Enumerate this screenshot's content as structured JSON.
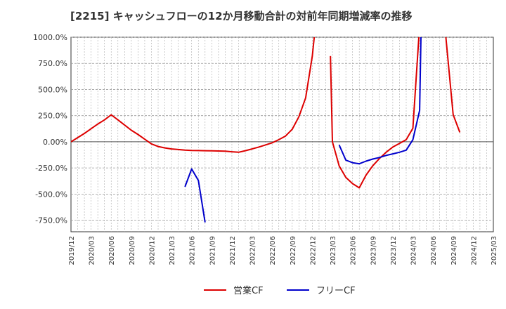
{
  "chart_data": {
    "type": "line",
    "title": "[2215]  キャッシュフローの12か月移動合計の対前年同期増減率の推移",
    "xlabel": "",
    "ylabel": "",
    "ylim": [
      -860,
      1000
    ],
    "y_ticks": [
      "1000.0%",
      "750.0%",
      "500.0%",
      "250.0%",
      "0.00%",
      "-250.0%",
      "-500.0%",
      "-750.0%"
    ],
    "y_tick_values": [
      1000,
      750,
      500,
      250,
      0,
      -250,
      -500,
      -750
    ],
    "x_ticks": [
      "2019/12",
      "2020/03",
      "2020/06",
      "2020/09",
      "2020/12",
      "2021/03",
      "2021/06",
      "2021/09",
      "2021/12",
      "2022/03",
      "2022/06",
      "2022/09",
      "2022/12",
      "2023/03",
      "2023/06",
      "2023/09",
      "2023/12",
      "2024/03",
      "2024/06",
      "2024/09",
      "2024/12",
      "2025/03"
    ],
    "x_start": "2019/12",
    "grid": true,
    "legend_position": "bottom",
    "series": [
      {
        "name": "営業CF",
        "color": "#dd0000",
        "points": [
          [
            0,
            0
          ],
          [
            1,
            40
          ],
          [
            2,
            80
          ],
          [
            3,
            125
          ],
          [
            4,
            170
          ],
          [
            5,
            210
          ],
          [
            6,
            258
          ],
          [
            7,
            210
          ],
          [
            8,
            160
          ],
          [
            9,
            110
          ],
          [
            10,
            70
          ],
          [
            11,
            25
          ],
          [
            12,
            -20
          ],
          [
            13,
            -45
          ],
          [
            14,
            -58
          ],
          [
            15,
            -68
          ],
          [
            16,
            -74
          ],
          [
            17,
            -80
          ],
          [
            18,
            -83
          ],
          [
            19,
            -84
          ],
          [
            20,
            -85
          ],
          [
            21,
            -86
          ],
          [
            22,
            -88
          ],
          [
            23,
            -90
          ],
          [
            24,
            -95
          ],
          [
            25,
            -100
          ],
          [
            26,
            -85
          ],
          [
            27,
            -68
          ],
          [
            28,
            -50
          ],
          [
            29,
            -30
          ],
          [
            30,
            -10
          ],
          [
            31,
            20
          ],
          [
            32,
            55
          ],
          [
            33,
            120
          ],
          [
            34,
            240
          ],
          [
            35,
            420
          ],
          [
            36,
            820
          ],
          [
            36.3,
            1010
          ],
          null,
          [
            38.7,
            820
          ],
          [
            39,
            0
          ],
          [
            40,
            -230
          ],
          [
            41,
            -340
          ],
          [
            42,
            -400
          ],
          [
            43,
            -440
          ],
          [
            44,
            -320
          ],
          [
            45,
            -230
          ],
          [
            46,
            -160
          ],
          [
            47,
            -100
          ],
          [
            48,
            -50
          ],
          [
            49,
            -15
          ],
          [
            50,
            20
          ],
          [
            51,
            130
          ],
          [
            51.9,
            1010
          ],
          null,
          [
            55.9,
            1010
          ],
          [
            57,
            260
          ],
          [
            58,
            90
          ]
        ]
      },
      {
        "name": "フリーCF",
        "color": "#0000cc",
        "points": [
          [
            17,
            -430
          ],
          [
            18,
            -260
          ],
          [
            19,
            -370
          ],
          [
            20,
            -770
          ],
          null,
          [
            40,
            -30
          ],
          [
            41,
            -175
          ],
          [
            42,
            -200
          ],
          [
            43,
            -210
          ],
          [
            44,
            -185
          ],
          [
            45,
            -165
          ],
          [
            46,
            -150
          ],
          [
            47,
            -130
          ],
          [
            48,
            -115
          ],
          [
            49,
            -100
          ],
          [
            50,
            -80
          ],
          [
            51,
            20
          ],
          [
            52,
            300
          ],
          [
            52.2,
            1010
          ]
        ]
      }
    ]
  }
}
